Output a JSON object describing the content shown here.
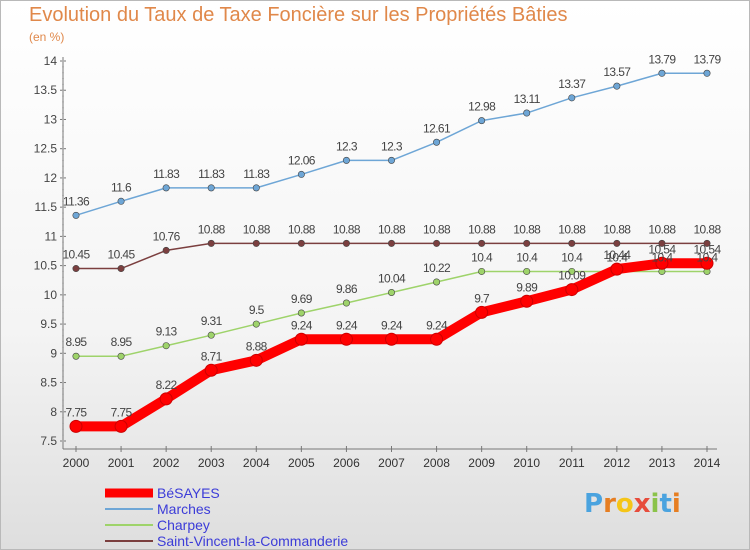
{
  "title": "Evolution du Taux de Taxe Foncière sur les Propriétés Bâties",
  "unit_label": "(en %)",
  "brand": {
    "text": "Proxiti",
    "letter_colors": [
      "#4aa3df",
      "#e67e22",
      "#f5c518",
      "#e74c3c",
      "#8bc34a",
      "#4aa3df",
      "#e67e22"
    ]
  },
  "chart_data": {
    "type": "line",
    "title": "Evolution du Taux de Taxe Foncière sur les Propriétés Bâties",
    "ylabel": "(en %)",
    "xlabel": "",
    "x": [
      "2000",
      "2001",
      "2002",
      "2003",
      "2004",
      "2005",
      "2006",
      "2007",
      "2008",
      "2009",
      "2010",
      "2011",
      "2012",
      "2013",
      "2014"
    ],
    "ylim": [
      7.5,
      14
    ],
    "yticks": [
      "7.5",
      "8",
      "8.5",
      "9",
      "9.5",
      "10",
      "10.5",
      "11",
      "11.5",
      "12",
      "12.5",
      "13",
      "13.5",
      "14"
    ],
    "grid": false,
    "legend_position": "bottom-left",
    "series": [
      {
        "name": "BéSAYES",
        "color": "#ff0000",
        "values": [
          7.75,
          7.75,
          8.22,
          8.71,
          8.88,
          9.24,
          9.24,
          9.24,
          9.24,
          9.7,
          9.89,
          10.09,
          10.44,
          10.54,
          10.54
        ],
        "labels": [
          "7.75",
          "7.75",
          "8.22",
          "8.71",
          "8.88",
          "9.24",
          "9.24",
          "9.24",
          "9.24",
          "9.7",
          "9.89",
          "10.09",
          "10.44",
          "10.54",
          "10.54"
        ]
      },
      {
        "name": "Marches",
        "color": "#6ea6d6",
        "values": [
          11.36,
          11.6,
          11.83,
          11.83,
          11.83,
          12.06,
          12.3,
          12.3,
          12.61,
          12.98,
          13.11,
          13.37,
          13.57,
          13.79,
          13.79
        ],
        "labels": [
          "11.36",
          "11.6",
          "11.83",
          "11.83",
          "11.83",
          "12.06",
          "12.3",
          "12.3",
          "12.61",
          "12.98",
          "13.11",
          "13.37",
          "13.57",
          "13.79",
          "13.79"
        ]
      },
      {
        "name": "Charpey",
        "color": "#9ed36a",
        "values": [
          8.95,
          8.95,
          9.13,
          9.31,
          9.5,
          9.69,
          9.86,
          10.04,
          10.22,
          10.4,
          10.4,
          10.4,
          10.4,
          10.4,
          10.4
        ],
        "labels": [
          "8.95",
          "8.95",
          "9.13",
          "9.31",
          "9.5",
          "9.69",
          "9.86",
          "10.04",
          "10.22",
          "10.4",
          "10.4",
          "10.4",
          "10.4",
          "10.4",
          "10.4"
        ]
      },
      {
        "name": "Saint-Vincent-la-Commanderie",
        "color": "#7b3f3f",
        "values": [
          10.45,
          10.45,
          10.76,
          10.88,
          10.88,
          10.88,
          10.88,
          10.88,
          10.88,
          10.88,
          10.88,
          10.88,
          10.88,
          10.88,
          10.88
        ],
        "labels": [
          "10.45",
          "10.45",
          "10.76",
          "10.88",
          "10.88",
          "10.88",
          "10.88",
          "10.88",
          "10.88",
          "10.88",
          "10.88",
          "10.88",
          "10.88",
          "10.88",
          "10.88"
        ]
      }
    ]
  }
}
